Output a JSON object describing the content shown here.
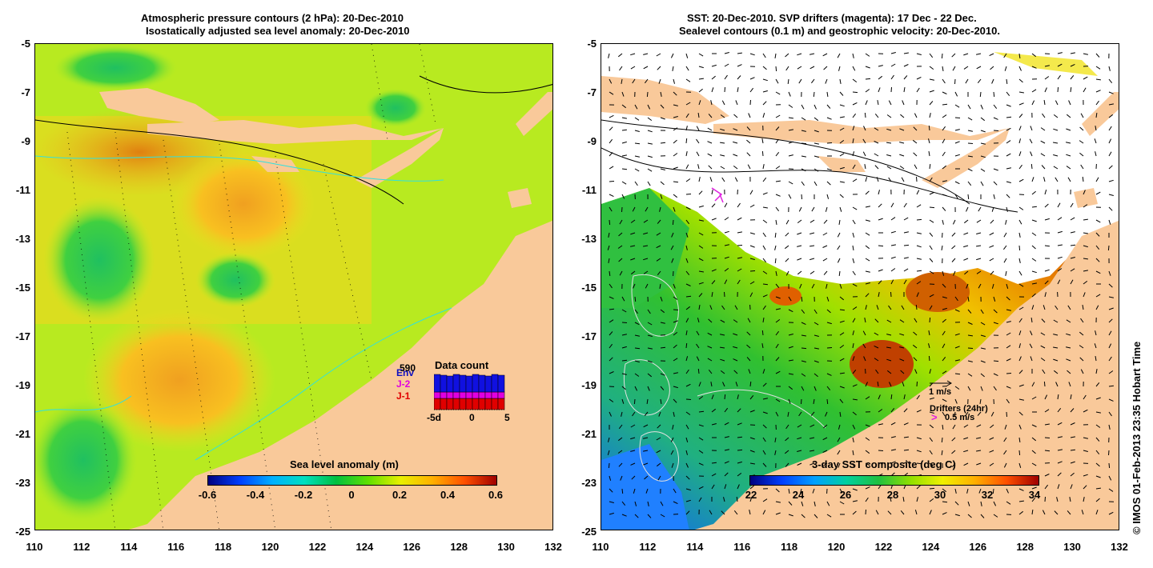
{
  "left": {
    "title_line1": "Atmospheric pressure contours (2 hPa): 20-Dec-2010",
    "title_line2": "Isostatically adjusted sea level anomaly: 20-Dec-2010",
    "colorbar_label": "Sea level anomaly (m)",
    "colorbar_ticks": [
      "-0.6",
      "-0.4",
      "-0.2",
      "0",
      "0.2",
      "0.4",
      "0.6"
    ],
    "data_count": {
      "title": "Data count",
      "total": "590",
      "labels": [
        "Env",
        "J-2",
        "J-1"
      ],
      "label_colors": [
        "#1010c0",
        "#e000e0",
        "#e00000"
      ],
      "axis_ticks": [
        "-5d",
        "0",
        "5"
      ]
    }
  },
  "right": {
    "title_line1": "SST: 20-Dec-2010. SVP drifters (magenta): 17 Dec - 22 Dec.",
    "title_line2": "Sealevel contours (0.1 m) and geostrophic velocity: 20-Dec-2010.",
    "colorbar_label": "3-day SST composite (deg C)",
    "colorbar_ticks": [
      "22",
      "24",
      "26",
      "28",
      "30",
      "32",
      "34"
    ],
    "velocity_scale": "1 m/s",
    "drifters_label": "Drifters (24hr)",
    "drifters_scale": "0.5 m/s"
  },
  "y_ticks": [
    "-5",
    "-7",
    "-9",
    "-11",
    "-13",
    "-15",
    "-17",
    "-19",
    "-21",
    "-23",
    "-25"
  ],
  "x_ticks": [
    "110",
    "112",
    "114",
    "116",
    "118",
    "120",
    "122",
    "124",
    "126",
    "128",
    "130",
    "132"
  ],
  "credit": "© IMOS 01-Feb-2013 23:35 Hobart Time",
  "colors": {
    "land": "#f9c99a",
    "sla_colorscale": [
      "#00007f",
      "#0050ff",
      "#00c8ff",
      "#00d060",
      "#70e000",
      "#c8f000",
      "#ffd000",
      "#ff9000",
      "#ff3000",
      "#800000"
    ],
    "sst_colorscale": [
      "#00007f",
      "#0050ff",
      "#00b0ff",
      "#00c878",
      "#40d040",
      "#c0f000",
      "#ffe000",
      "#ff9000",
      "#e03000",
      "#800000"
    ],
    "drifter": "#e020e0",
    "coast_contour": "#30e0e0"
  }
}
